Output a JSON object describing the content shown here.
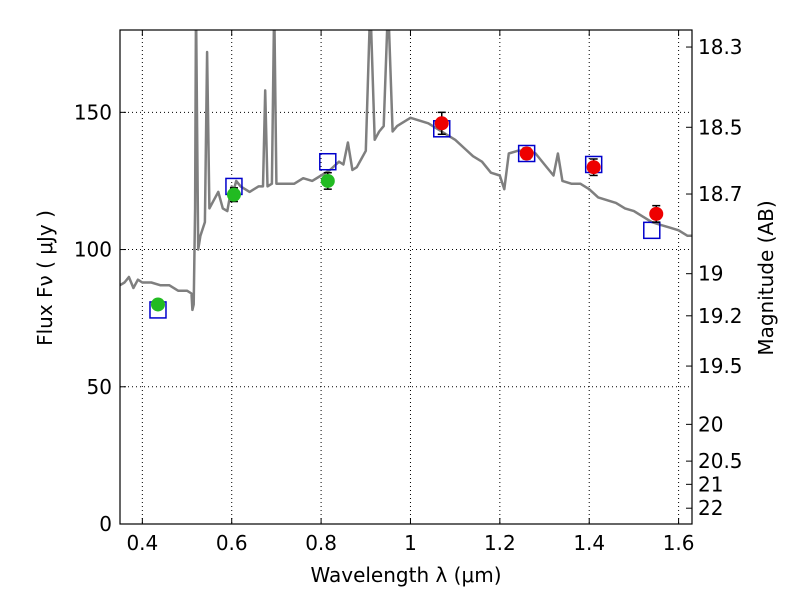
{
  "chart_data": {
    "type": "scatter",
    "xlabel": "Wavelength  λ (μm)",
    "ylabel": "Flux  Fν  ( μJy )",
    "ylabel2": "Magnitude (AB)",
    "xlim": [
      0.35,
      1.63
    ],
    "ylim": [
      0,
      180
    ],
    "grid": true,
    "x_ticks": [
      {
        "value": 0.4,
        "label": "0.4"
      },
      {
        "value": 0.6,
        "label": "0.6"
      },
      {
        "value": 0.8,
        "label": "0.8"
      },
      {
        "value": 1.0,
        "label": "1"
      },
      {
        "value": 1.2,
        "label": "1.2"
      },
      {
        "value": 1.4,
        "label": "1.4"
      },
      {
        "value": 1.6,
        "label": "1.6"
      }
    ],
    "y_ticks": [
      {
        "value": 0,
        "label": "0"
      },
      {
        "value": 50,
        "label": "50"
      },
      {
        "value": 100,
        "label": "100"
      },
      {
        "value": 150,
        "label": "150"
      }
    ],
    "y2_ticks": [
      {
        "value": 18.3,
        "label": "18.3"
      },
      {
        "value": 18.5,
        "label": "18.5"
      },
      {
        "value": 18.7,
        "label": "18.7"
      },
      {
        "value": 19.0,
        "label": "19"
      },
      {
        "value": 19.2,
        "label": "19.2"
      },
      {
        "value": 19.5,
        "label": "19.5"
      },
      {
        "value": 20.0,
        "label": "20"
      },
      {
        "value": 20.5,
        "label": "20.5"
      },
      {
        "value": 21.0,
        "label": "21"
      },
      {
        "value": 22.0,
        "label": "22"
      }
    ],
    "series": [
      {
        "type": "line",
        "color": "#7f7f7f",
        "points": [
          [
            0.35,
            87
          ],
          [
            0.36,
            88
          ],
          [
            0.37,
            90
          ],
          [
            0.38,
            86
          ],
          [
            0.39,
            89
          ],
          [
            0.4,
            88
          ],
          [
            0.42,
            88
          ],
          [
            0.44,
            87
          ],
          [
            0.46,
            87
          ],
          [
            0.48,
            85
          ],
          [
            0.5,
            85
          ],
          [
            0.51,
            84
          ],
          [
            0.512,
            78
          ],
          [
            0.515,
            80
          ],
          [
            0.518,
            115
          ],
          [
            0.52,
            190
          ],
          [
            0.525,
            100
          ],
          [
            0.53,
            105
          ],
          [
            0.54,
            110
          ],
          [
            0.545,
            172
          ],
          [
            0.55,
            115
          ],
          [
            0.56,
            118
          ],
          [
            0.57,
            121
          ],
          [
            0.58,
            115
          ],
          [
            0.59,
            114
          ],
          [
            0.6,
            123
          ],
          [
            0.605,
            122
          ],
          [
            0.61,
            125
          ],
          [
            0.62,
            123
          ],
          [
            0.64,
            121
          ],
          [
            0.66,
            123
          ],
          [
            0.67,
            123
          ],
          [
            0.675,
            158
          ],
          [
            0.68,
            123
          ],
          [
            0.69,
            124
          ],
          [
            0.695,
            190
          ],
          [
            0.7,
            124
          ],
          [
            0.72,
            124
          ],
          [
            0.74,
            124
          ],
          [
            0.76,
            126
          ],
          [
            0.78,
            125
          ],
          [
            0.8,
            127
          ],
          [
            0.82,
            129
          ],
          [
            0.84,
            132
          ],
          [
            0.85,
            131
          ],
          [
            0.86,
            139
          ],
          [
            0.87,
            129
          ],
          [
            0.88,
            130
          ],
          [
            0.89,
            133
          ],
          [
            0.9,
            136
          ],
          [
            0.91,
            190
          ],
          [
            0.92,
            140
          ],
          [
            0.93,
            143
          ],
          [
            0.94,
            145
          ],
          [
            0.95,
            190
          ],
          [
            0.96,
            143
          ],
          [
            0.97,
            145
          ],
          [
            0.98,
            146
          ],
          [
            1.0,
            148
          ],
          [
            1.02,
            147
          ],
          [
            1.04,
            146
          ],
          [
            1.06,
            144
          ],
          [
            1.08,
            142
          ],
          [
            1.1,
            140
          ],
          [
            1.12,
            137
          ],
          [
            1.14,
            134
          ],
          [
            1.16,
            132
          ],
          [
            1.18,
            128
          ],
          [
            1.2,
            127
          ],
          [
            1.21,
            122
          ],
          [
            1.22,
            135
          ],
          [
            1.24,
            136
          ],
          [
            1.26,
            136
          ],
          [
            1.28,
            135
          ],
          [
            1.3,
            131
          ],
          [
            1.32,
            127
          ],
          [
            1.33,
            135
          ],
          [
            1.34,
            125
          ],
          [
            1.36,
            124
          ],
          [
            1.38,
            124
          ],
          [
            1.4,
            122
          ],
          [
            1.42,
            119
          ],
          [
            1.44,
            118
          ],
          [
            1.46,
            117
          ],
          [
            1.48,
            115
          ],
          [
            1.5,
            114
          ],
          [
            1.52,
            112
          ],
          [
            1.54,
            110
          ],
          [
            1.56,
            109
          ],
          [
            1.58,
            108
          ],
          [
            1.6,
            107
          ],
          [
            1.62,
            105
          ],
          [
            1.63,
            105
          ]
        ]
      },
      {
        "type": "open-squares",
        "color": "#0000cc",
        "points": [
          [
            0.435,
            78
          ],
          [
            0.605,
            123
          ],
          [
            0.815,
            132
          ],
          [
            1.07,
            144
          ],
          [
            1.26,
            135
          ],
          [
            1.41,
            131
          ],
          [
            1.54,
            107
          ]
        ]
      },
      {
        "type": "filled-circles",
        "color": "#22bb22",
        "points": [
          [
            0.435,
            80
          ],
          [
            0.605,
            120
          ],
          [
            0.815,
            125
          ]
        ],
        "errors": [
          1.5,
          2.5,
          3
        ]
      },
      {
        "type": "filled-circles",
        "color": "#ee0000",
        "points": [
          [
            1.07,
            146
          ],
          [
            1.26,
            135
          ],
          [
            1.41,
            130
          ],
          [
            1.55,
            113
          ]
        ],
        "errors": [
          4,
          2,
          3,
          3
        ]
      }
    ]
  }
}
